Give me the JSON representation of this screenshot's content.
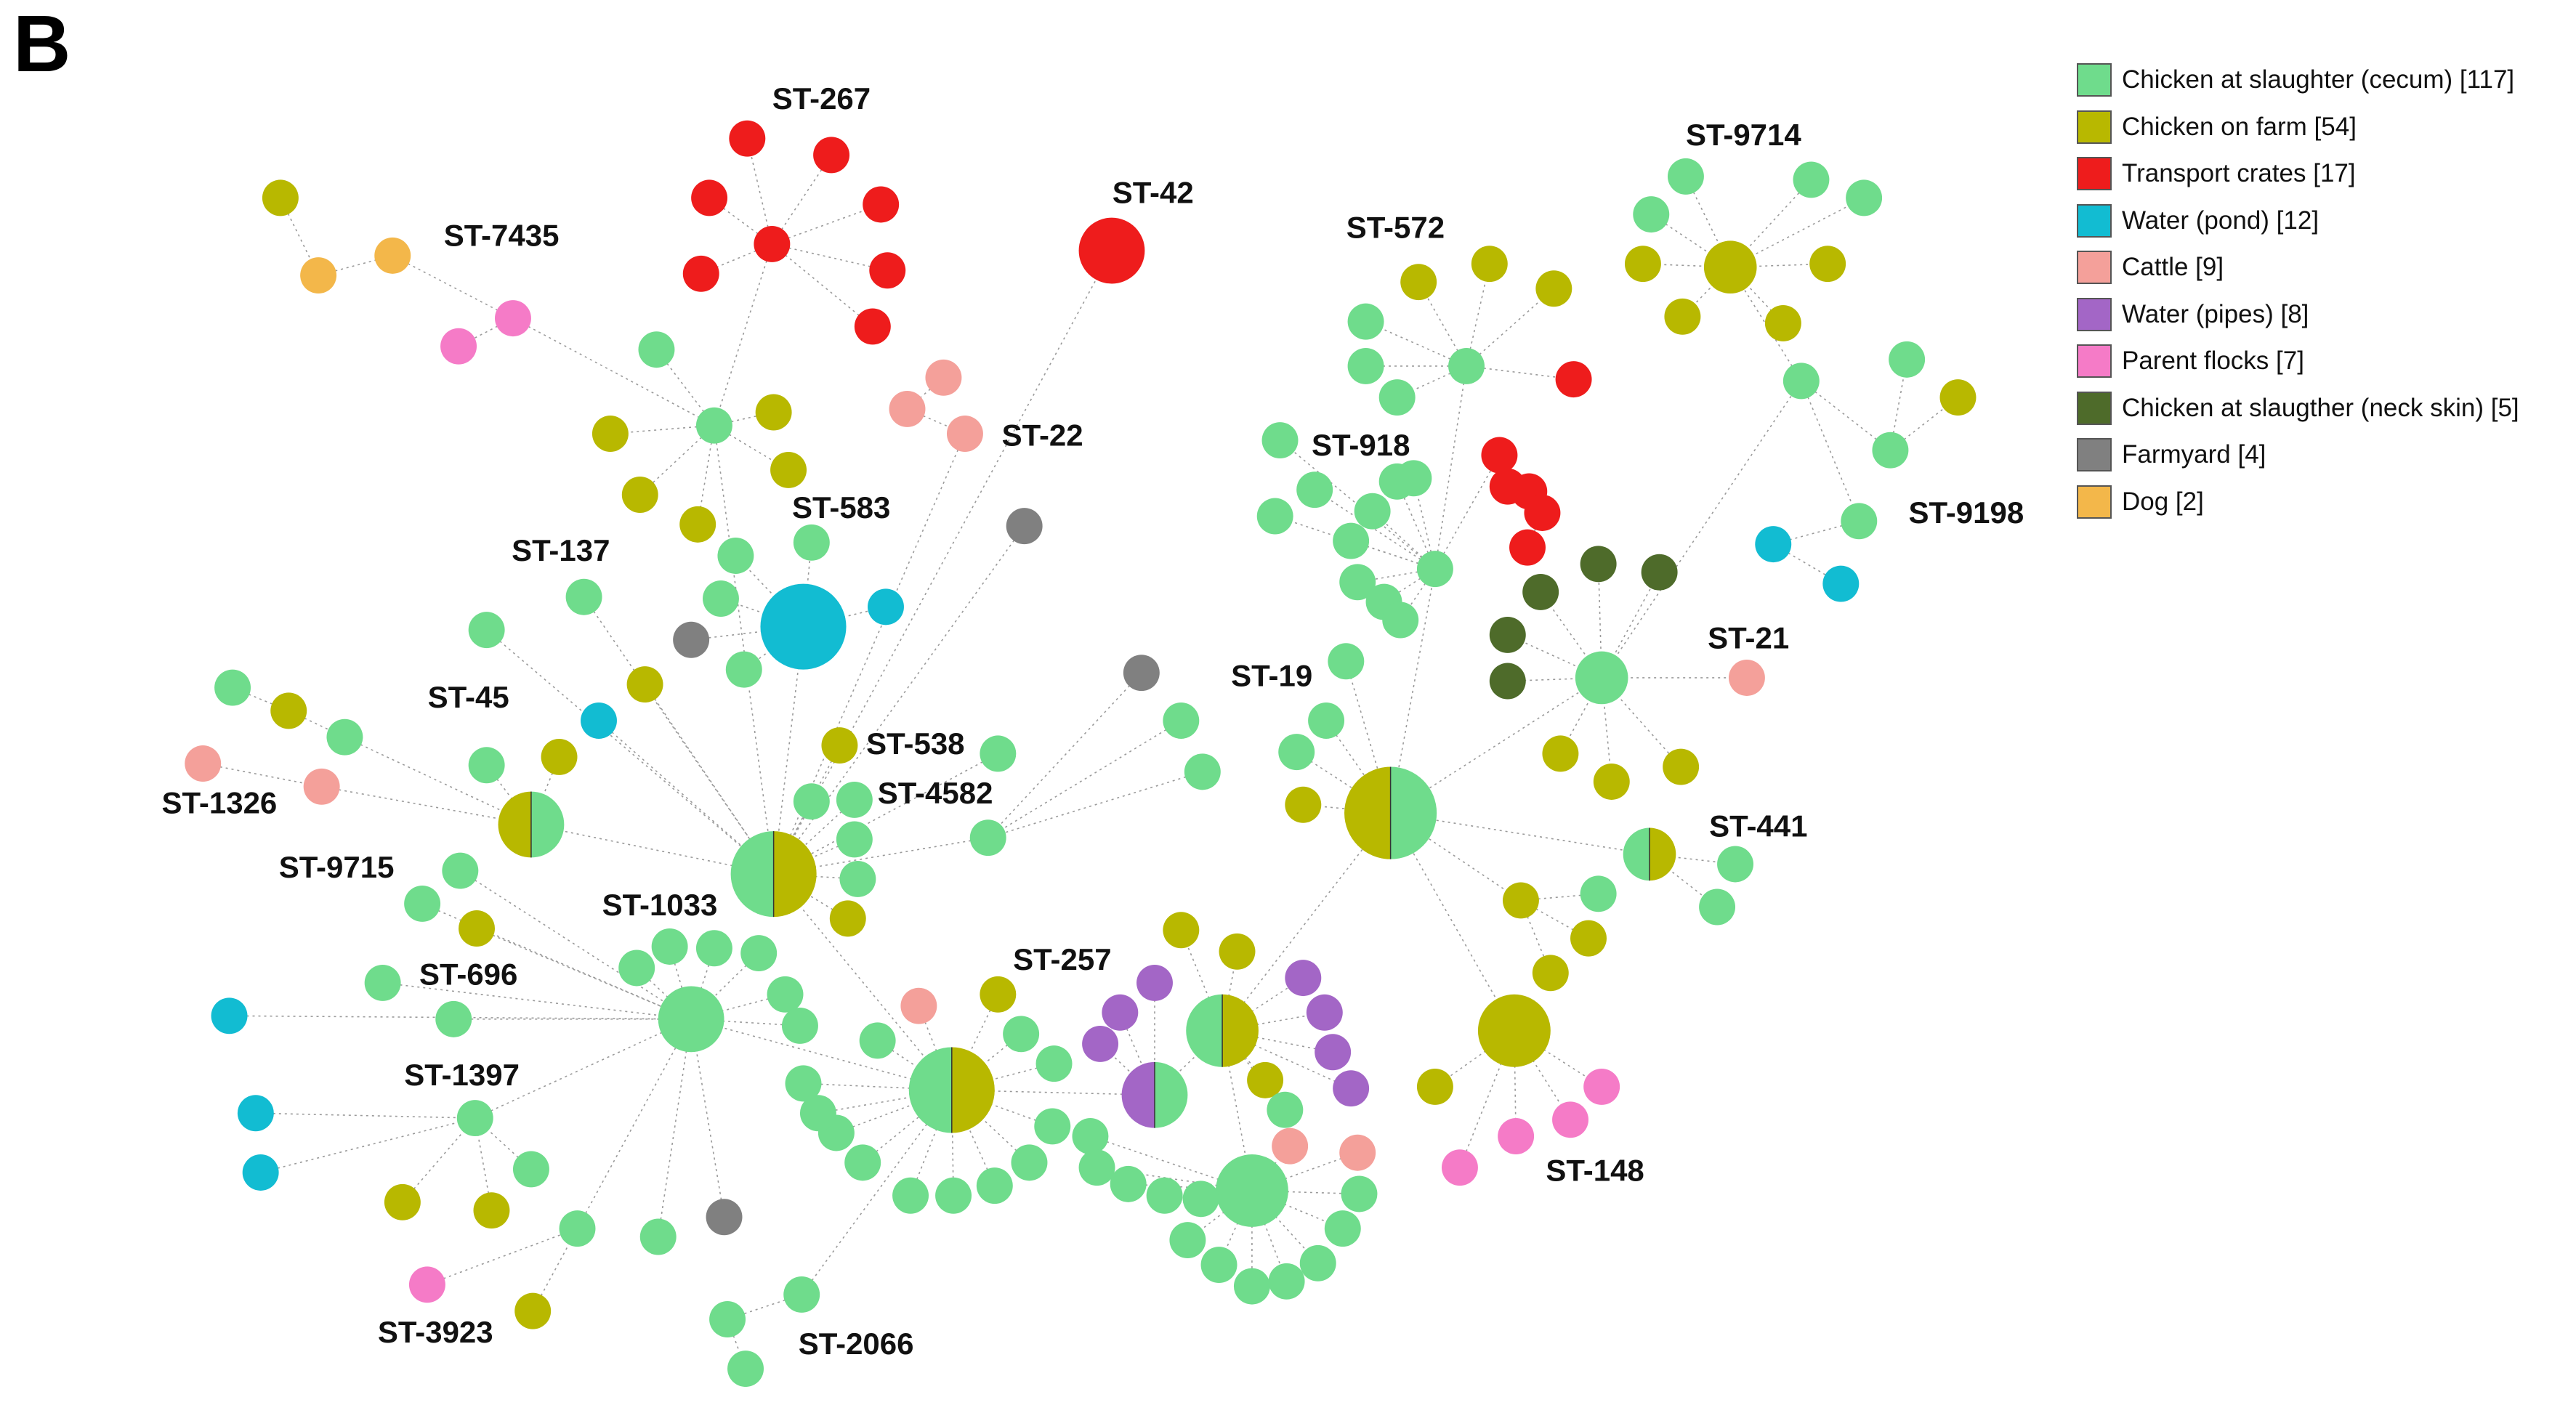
{
  "panel_label": "B",
  "colors": {
    "green": "#6fdc8c",
    "olive": "#b8b800",
    "red": "#ee1c1c",
    "cyan": "#12bcd2",
    "salmon": "#f4a09a",
    "purple": "#a366c6",
    "pink": "#f57bc7",
    "darkgreen": "#4e6b2a",
    "gray": "#808080",
    "orange": "#f3b74a",
    "edge": "#9a9a9a"
  },
  "legend": [
    {
      "label": "Chicken at slaughter (cecum) [117]",
      "color": "green"
    },
    {
      "label": "Chicken on farm [54]",
      "color": "olive"
    },
    {
      "label": "Transport crates [17]",
      "color": "red"
    },
    {
      "label": "Water (pond) [12]",
      "color": "cyan"
    },
    {
      "label": "Cattle [9]",
      "color": "salmon"
    },
    {
      "label": "Water (pipes) [8]",
      "color": "purple"
    },
    {
      "label": "Parent flocks [7]",
      "color": "pink"
    },
    {
      "label": "Chicken at slaugther (neck skin) [5]",
      "color": "darkgreen"
    },
    {
      "label": "Farmyard [4]",
      "color": "gray"
    },
    {
      "label": "Dog [2]",
      "color": "orange"
    }
  ],
  "st_labels": [
    "ST-267",
    "ST-42",
    "ST-7435",
    "ST-22",
    "ST-583",
    "ST-137",
    "ST-45",
    "ST-1326",
    "ST-538",
    "ST-4582",
    "ST-9715",
    "ST-1033",
    "ST-696",
    "ST-1397",
    "ST-257",
    "ST-3923",
    "ST-2066",
    "ST-9714",
    "ST-572",
    "ST-918",
    "ST-9198",
    "ST-21",
    "ST-19",
    "ST-441",
    "ST-148"
  ]
}
